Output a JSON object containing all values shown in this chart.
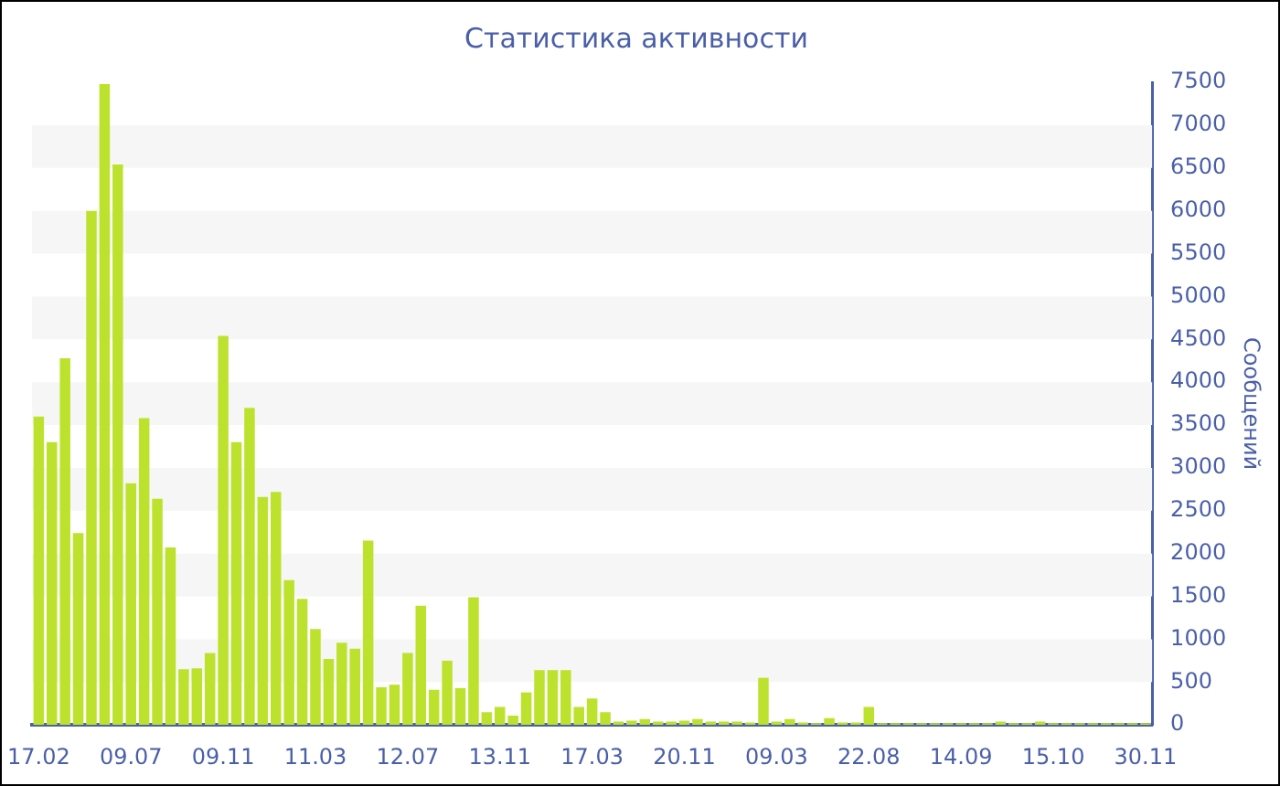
{
  "chart_data": {
    "type": "bar",
    "title": "Статистика активности",
    "ylabel": "Сообщений",
    "categories": [
      "17.02",
      null,
      null,
      null,
      null,
      null,
      null,
      "09.07",
      null,
      null,
      null,
      null,
      null,
      null,
      "09.11",
      null,
      null,
      null,
      null,
      null,
      null,
      "11.03",
      null,
      null,
      null,
      null,
      null,
      null,
      "12.07",
      null,
      null,
      null,
      null,
      null,
      null,
      "13.11",
      null,
      null,
      null,
      null,
      null,
      null,
      "17.03",
      null,
      null,
      null,
      null,
      null,
      null,
      "20.11",
      null,
      null,
      null,
      null,
      null,
      null,
      "09.03",
      null,
      null,
      null,
      null,
      null,
      null,
      "22.08",
      null,
      null,
      null,
      null,
      null,
      null,
      "14.09",
      null,
      null,
      null,
      null,
      null,
      null,
      "15.10",
      null,
      null,
      null,
      null,
      null,
      null,
      "30.11"
    ],
    "values": [
      3600,
      3300,
      4280,
      2240,
      6000,
      7480,
      6540,
      2820,
      3580,
      2640,
      2070,
      650,
      660,
      840,
      4540,
      3300,
      3700,
      2660,
      2720,
      1690,
      1470,
      1120,
      770,
      960,
      890,
      2150,
      440,
      470,
      840,
      1390,
      410,
      750,
      430,
      1490,
      150,
      210,
      110,
      380,
      640,
      640,
      640,
      210,
      310,
      150,
      40,
      50,
      70,
      40,
      40,
      50,
      70,
      40,
      40,
      40,
      30,
      550,
      40,
      70,
      30,
      20,
      80,
      30,
      30,
      210,
      20,
      20,
      20,
      20,
      20,
      20,
      20,
      20,
      20,
      40,
      20,
      20,
      40,
      20,
      20,
      20,
      20,
      20,
      20,
      20,
      20
    ],
    "color": "#bde22e",
    "ylim": [
      0,
      7500
    ],
    "yticks": [
      0,
      500,
      1000,
      1500,
      2000,
      2500,
      3000,
      3500,
      4000,
      4500,
      5000,
      5500,
      6000,
      6500,
      7000,
      7500
    ],
    "bands": [
      {
        "axis": "y",
        "from": 500,
        "to": 1000,
        "color": "#f6f6f6"
      },
      {
        "axis": "y",
        "from": 1500,
        "to": 2000,
        "color": "#f6f6f6"
      },
      {
        "axis": "y",
        "from": 2500,
        "to": 3000,
        "color": "#f6f6f6"
      },
      {
        "axis": "y",
        "from": 3500,
        "to": 4000,
        "color": "#f6f6f6"
      },
      {
        "axis": "y",
        "from": 4500,
        "to": 5000,
        "color": "#f6f6f6"
      },
      {
        "axis": "y",
        "from": 5500,
        "to": 6000,
        "color": "#f6f6f6"
      },
      {
        "axis": "y",
        "from": 6500,
        "to": 7000,
        "color": "#f6f6f6"
      }
    ]
  }
}
